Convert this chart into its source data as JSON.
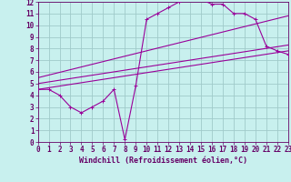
{
  "xlabel": "Windchill (Refroidissement éolien,°C)",
  "bg_color": "#c8f0ee",
  "grid_color": "#a0caca",
  "line_color": "#990099",
  "spine_color": "#660066",
  "xlim": [
    0,
    23
  ],
  "ylim": [
    0,
    12
  ],
  "xticks": [
    0,
    1,
    2,
    3,
    4,
    5,
    6,
    7,
    8,
    9,
    10,
    11,
    12,
    13,
    14,
    15,
    16,
    17,
    18,
    19,
    20,
    21,
    22,
    23
  ],
  "yticks": [
    0,
    1,
    2,
    3,
    4,
    5,
    6,
    7,
    8,
    9,
    10,
    11,
    12
  ],
  "curve_x": [
    0,
    1,
    2,
    3,
    4,
    5,
    6,
    7,
    8,
    9,
    10,
    11,
    12,
    13,
    14,
    15,
    16,
    17,
    18,
    19,
    20,
    21,
    22,
    23
  ],
  "curve_y": [
    4.5,
    4.5,
    4.0,
    3.0,
    2.5,
    3.0,
    3.5,
    4.5,
    0.2,
    4.8,
    10.5,
    11.0,
    11.5,
    12.0,
    12.2,
    12.2,
    11.8,
    11.8,
    11.0,
    11.0,
    10.5,
    8.2,
    7.8,
    7.5
  ],
  "line1_x": [
    0,
    23
  ],
  "line1_y": [
    4.5,
    7.8
  ],
  "line2_x": [
    0,
    23
  ],
  "line2_y": [
    5.0,
    8.3
  ],
  "line3_x": [
    0,
    23
  ],
  "line3_y": [
    5.5,
    10.8
  ],
  "marker": "+",
  "tick_fontsize": 5.5,
  "xlabel_fontsize": 6.0
}
